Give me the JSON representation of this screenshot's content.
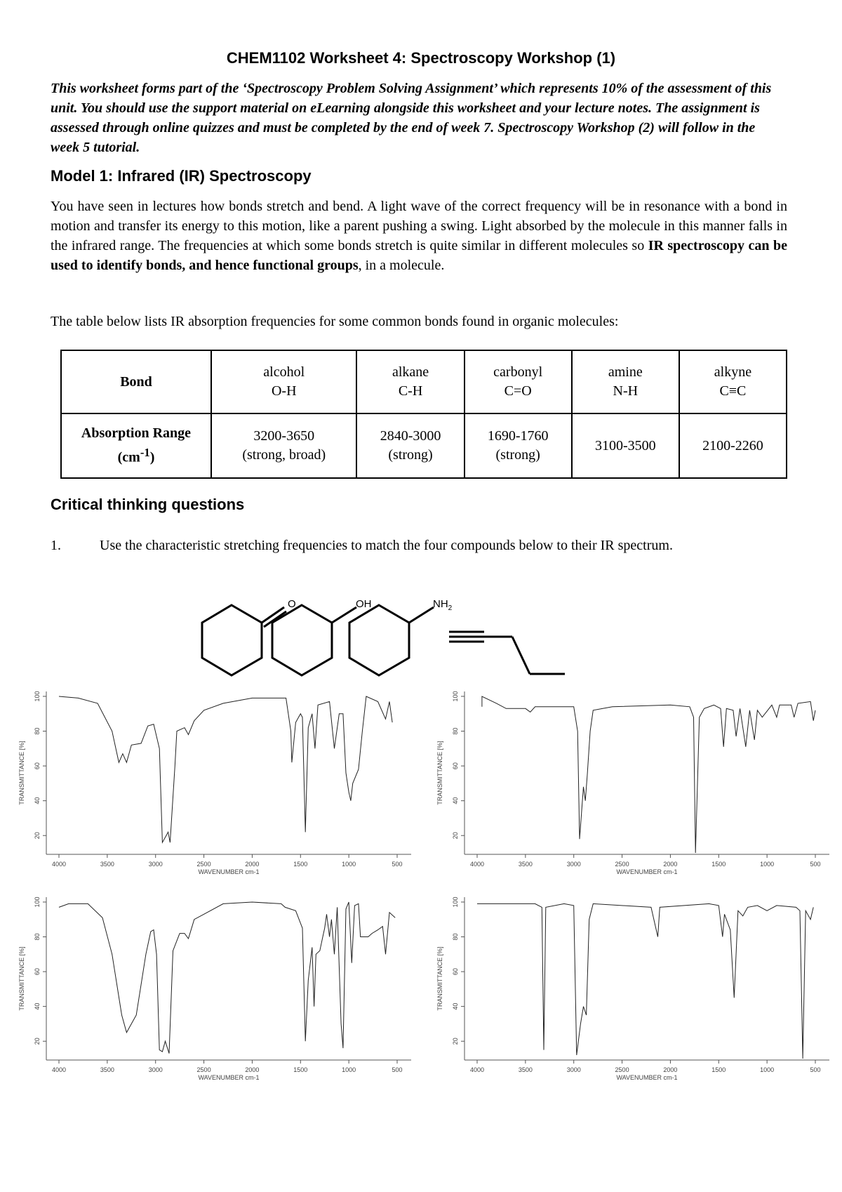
{
  "title": "CHEM1102 Worksheet 4: Spectroscopy Workshop (1)",
  "intro": "This worksheet forms part of the ‘Spectroscopy Problem Solving Assignment’ which represents 10% of the assessment of this unit. You should use the support material on eLearning alongside this worksheet and your lecture notes. The assignment is assessed through online quizzes and must be completed by the end of week 7. Spectroscopy Workshop (2) will follow in the week 5 tutorial.",
  "model1": {
    "heading": "Model 1: Infrared (IR) Spectroscopy",
    "para1_a": "You have seen in lectures how bonds stretch and bend. A light wave of the correct frequency will be in resonance with a bond in motion and transfer its energy to this motion, like a parent pushing a swing. Light absorbed by the molecule in this manner falls in the infrared range. The frequencies at which some bonds stretch is quite similar in different molecules so ",
    "para1_bold": "IR spectroscopy can be used to identify bonds, and hence functional groups",
    "para1_c": ", in a molecule.",
    "para2": "The table below lists IR absorption frequencies for some common bonds found in organic molecules:"
  },
  "table": {
    "row1_header": "Bond",
    "row2_header": "Absorption Range",
    "row2_unit": "(cm",
    "row2_unit_sup": "-1",
    "row2_unit_end": ")",
    "columns": [
      {
        "name": "alcohol",
        "bond": "O-H",
        "range": "3200-3650",
        "note": "(strong, broad)"
      },
      {
        "name": "alkane",
        "bond": "C-H",
        "range": "2840-3000",
        "note": "(strong)"
      },
      {
        "name": "carbonyl",
        "bond": "C=O",
        "range": "1690-1760",
        "note": "(strong)"
      },
      {
        "name": "amine",
        "bond": "N-H",
        "range": "3100-3500",
        "note": ""
      },
      {
        "name": "alkyne",
        "bond": "C≡C",
        "range": "2100-2260",
        "note": ""
      }
    ]
  },
  "critical": {
    "heading": "Critical thinking questions",
    "q1_num": "1.",
    "q1_text": "Use the characteristic stretching frequencies to match the four compounds below to their IR spectrum."
  },
  "molecules": {
    "ketone_label": "O",
    "alcohol_label": "OH",
    "amine_label": "NH",
    "amine_sub": "2"
  },
  "chart_data": [
    {
      "type": "line",
      "xlabel": "WAVENUMBER cm-1",
      "ylabel": "TRANSMITTANCE [%]",
      "xlim": [
        4000,
        500
      ],
      "ylim": [
        10,
        102
      ],
      "xticks": [
        4000,
        3500,
        3000,
        2500,
        2000,
        1500,
        1000,
        500
      ],
      "yticks": [
        20,
        40,
        60,
        80,
        100
      ],
      "points": [
        [
          4000,
          100
        ],
        [
          3800,
          99
        ],
        [
          3600,
          96
        ],
        [
          3450,
          80
        ],
        [
          3380,
          62
        ],
        [
          3340,
          67
        ],
        [
          3300,
          62
        ],
        [
          3250,
          72
        ],
        [
          3150,
          73
        ],
        [
          3080,
          83
        ],
        [
          3020,
          84
        ],
        [
          2960,
          70
        ],
        [
          2930,
          16
        ],
        [
          2890,
          20
        ],
        [
          2870,
          22
        ],
        [
          2850,
          16
        ],
        [
          2800,
          60
        ],
        [
          2780,
          80
        ],
        [
          2700,
          82
        ],
        [
          2660,
          78
        ],
        [
          2600,
          86
        ],
        [
          2500,
          92
        ],
        [
          2300,
          96
        ],
        [
          2000,
          99
        ],
        [
          1650,
          99
        ],
        [
          1600,
          80
        ],
        [
          1590,
          62
        ],
        [
          1550,
          85
        ],
        [
          1500,
          90
        ],
        [
          1480,
          88
        ],
        [
          1450,
          22
        ],
        [
          1420,
          82
        ],
        [
          1380,
          90
        ],
        [
          1350,
          70
        ],
        [
          1320,
          95
        ],
        [
          1200,
          97
        ],
        [
          1150,
          70
        ],
        [
          1100,
          90
        ],
        [
          1060,
          90
        ],
        [
          1030,
          56
        ],
        [
          1000,
          45
        ],
        [
          980,
          40
        ],
        [
          960,
          50
        ],
        [
          900,
          58
        ],
        [
          860,
          80
        ],
        [
          820,
          100
        ],
        [
          700,
          97
        ],
        [
          620,
          87
        ],
        [
          580,
          97
        ],
        [
          550,
          85
        ]
      ]
    },
    {
      "type": "line",
      "xlabel": "WAVENUMBER cm-1",
      "ylabel": "TRANSMITTANCE [%]",
      "xlim": [
        4000,
        500
      ],
      "ylim": [
        10,
        102
      ],
      "xticks": [
        4000,
        3500,
        3000,
        2500,
        2000,
        1500,
        1000,
        500
      ],
      "yticks": [
        20,
        40,
        60,
        80,
        100
      ],
      "points": [
        [
          3950,
          94
        ],
        [
          3950,
          100
        ],
        [
          3800,
          96
        ],
        [
          3700,
          93
        ],
        [
          3500,
          93
        ],
        [
          3450,
          91
        ],
        [
          3400,
          94
        ],
        [
          3000,
          94
        ],
        [
          2960,
          80
        ],
        [
          2940,
          18
        ],
        [
          2900,
          48
        ],
        [
          2880,
          40
        ],
        [
          2860,
          55
        ],
        [
          2830,
          80
        ],
        [
          2800,
          92
        ],
        [
          2700,
          93
        ],
        [
          2600,
          94
        ],
        [
          2000,
          95
        ],
        [
          1800,
          94
        ],
        [
          1760,
          88
        ],
        [
          1740,
          10
        ],
        [
          1700,
          88
        ],
        [
          1650,
          93
        ],
        [
          1550,
          95
        ],
        [
          1480,
          93
        ],
        [
          1450,
          71
        ],
        [
          1420,
          93
        ],
        [
          1350,
          92
        ],
        [
          1320,
          77
        ],
        [
          1280,
          93
        ],
        [
          1220,
          71
        ],
        [
          1180,
          92
        ],
        [
          1130,
          75
        ],
        [
          1100,
          92
        ],
        [
          1050,
          88
        ],
        [
          950,
          95
        ],
        [
          900,
          88
        ],
        [
          870,
          95
        ],
        [
          750,
          95
        ],
        [
          720,
          88
        ],
        [
          680,
          96
        ],
        [
          550,
          97
        ],
        [
          520,
          86
        ],
        [
          500,
          92
        ]
      ]
    },
    {
      "type": "line",
      "xlabel": "WAVENUMBER cm-1",
      "ylabel": "TRANSMITTANCE [%]",
      "xlim": [
        4000,
        500
      ],
      "ylim": [
        10,
        102
      ],
      "xticks": [
        4000,
        3500,
        3000,
        2500,
        2000,
        1500,
        1000,
        500
      ],
      "yticks": [
        20,
        40,
        60,
        80,
        100
      ],
      "points": [
        [
          4000,
          97
        ],
        [
          3900,
          99
        ],
        [
          3700,
          99
        ],
        [
          3550,
          91
        ],
        [
          3450,
          70
        ],
        [
          3350,
          35
        ],
        [
          3300,
          25
        ],
        [
          3200,
          35
        ],
        [
          3100,
          70
        ],
        [
          3050,
          83
        ],
        [
          3020,
          84
        ],
        [
          2990,
          70
        ],
        [
          2960,
          15
        ],
        [
          2930,
          14
        ],
        [
          2900,
          20
        ],
        [
          2860,
          13
        ],
        [
          2820,
          72
        ],
        [
          2750,
          82
        ],
        [
          2700,
          82
        ],
        [
          2660,
          79
        ],
        [
          2600,
          90
        ],
        [
          2500,
          93
        ],
        [
          2300,
          99
        ],
        [
          2000,
          100
        ],
        [
          1700,
          99
        ],
        [
          1660,
          97
        ],
        [
          1550,
          95
        ],
        [
          1480,
          85
        ],
        [
          1450,
          20
        ],
        [
          1420,
          55
        ],
        [
          1380,
          74
        ],
        [
          1360,
          40
        ],
        [
          1340,
          70
        ],
        [
          1300,
          72
        ],
        [
          1270,
          80
        ],
        [
          1250,
          85
        ],
        [
          1230,
          93
        ],
        [
          1200,
          80
        ],
        [
          1180,
          90
        ],
        [
          1150,
          70
        ],
        [
          1120,
          97
        ],
        [
          1080,
          30
        ],
        [
          1060,
          16
        ],
        [
          1030,
          96
        ],
        [
          1000,
          100
        ],
        [
          970,
          65
        ],
        [
          940,
          98
        ],
        [
          900,
          99
        ],
        [
          880,
          80
        ],
        [
          800,
          80
        ],
        [
          760,
          82
        ],
        [
          700,
          84
        ],
        [
          650,
          86
        ],
        [
          620,
          70
        ],
        [
          580,
          94
        ],
        [
          520,
          91
        ]
      ]
    },
    {
      "type": "line",
      "xlabel": "WAVENUMBER cm-1",
      "ylabel": "TRANSMITTANCE [%]",
      "xlim": [
        4000,
        500
      ],
      "ylim": [
        10,
        102
      ],
      "xticks": [
        4000,
        3500,
        3000,
        2500,
        2000,
        1500,
        1000,
        500
      ],
      "yticks": [
        20,
        40,
        60,
        80,
        100
      ],
      "points": [
        [
          4000,
          99
        ],
        [
          3400,
          99
        ],
        [
          3330,
          97
        ],
        [
          3310,
          15
        ],
        [
          3290,
          97
        ],
        [
          3100,
          99
        ],
        [
          3000,
          98
        ],
        [
          2970,
          12
        ],
        [
          2930,
          30
        ],
        [
          2900,
          40
        ],
        [
          2870,
          35
        ],
        [
          2840,
          90
        ],
        [
          2800,
          99
        ],
        [
          2200,
          97
        ],
        [
          2130,
          80
        ],
        [
          2110,
          97
        ],
        [
          1600,
          99
        ],
        [
          1500,
          98
        ],
        [
          1460,
          80
        ],
        [
          1440,
          93
        ],
        [
          1380,
          84
        ],
        [
          1340,
          45
        ],
        [
          1300,
          95
        ],
        [
          1250,
          92
        ],
        [
          1200,
          97
        ],
        [
          1100,
          98
        ],
        [
          1000,
          95
        ],
        [
          900,
          98
        ],
        [
          700,
          97
        ],
        [
          660,
          95
        ],
        [
          630,
          10
        ],
        [
          600,
          95
        ],
        [
          550,
          90
        ],
        [
          520,
          97
        ]
      ]
    }
  ]
}
